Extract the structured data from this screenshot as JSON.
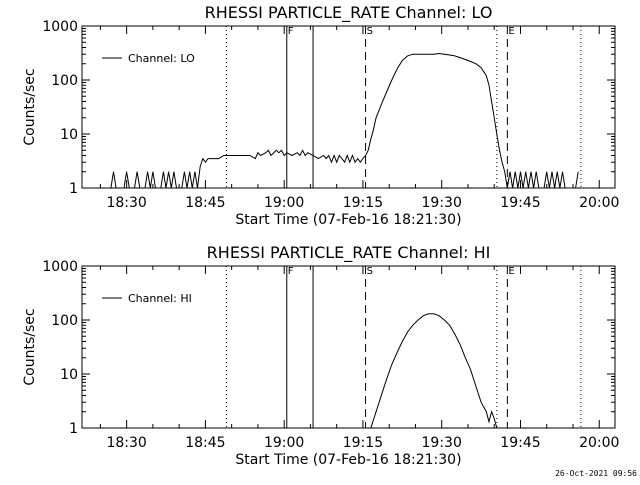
{
  "footer": {
    "timestamp": "26-Oct-2021 09:56"
  },
  "colors": {
    "line": "#000000",
    "background": "#ffffff"
  },
  "chart_data": [
    {
      "type": "line",
      "title": "RHESSI PARTICLE_RATE Channel: LO",
      "xlabel": "Start Time (07-Feb-16 18:21:30)",
      "ylabel": "Counts/sec",
      "x_unit": "minutes after 18:21:30",
      "xlim": [
        0,
        101.5
      ],
      "ylim": [
        1,
        1000
      ],
      "yscale": "log",
      "x_ticks": [
        {
          "v": 8.5,
          "label": "18:30"
        },
        {
          "v": 23.5,
          "label": "18:45"
        },
        {
          "v": 38.5,
          "label": "19:00"
        },
        {
          "v": 53.5,
          "label": "19:15"
        },
        {
          "v": 68.5,
          "label": "19:30"
        },
        {
          "v": 83.5,
          "label": "19:45"
        },
        {
          "v": 98.5,
          "label": "20:00"
        }
      ],
      "y_ticks": [
        {
          "v": 1,
          "label": "1"
        },
        {
          "v": 10,
          "label": "10"
        },
        {
          "v": 100,
          "label": "100"
        },
        {
          "v": 1000,
          "label": "1000"
        }
      ],
      "legend": {
        "position": "top-left",
        "entries": [
          "Channel: LO"
        ]
      },
      "markers": [
        {
          "x": 27.5,
          "style": "dotted",
          "label": ""
        },
        {
          "x": 39.0,
          "style": "solid",
          "label": "F"
        },
        {
          "x": 44.0,
          "style": "solid",
          "label": ""
        },
        {
          "x": 54.0,
          "style": "dashed",
          "label": "S"
        },
        {
          "x": 79.0,
          "style": "dotted",
          "label": ""
        },
        {
          "x": 81.0,
          "style": "dashed",
          "label": "E"
        },
        {
          "x": 95.0,
          "style": "dotted",
          "label": ""
        }
      ],
      "series": [
        {
          "name": "Channel: LO",
          "points": [
            [
              5.5,
              1
            ],
            [
              6,
              2
            ],
            [
              6.5,
              1
            ],
            [
              8,
              1
            ],
            [
              8.5,
              2
            ],
            [
              9,
              1
            ],
            [
              10,
              1
            ],
            [
              10.5,
              2
            ],
            [
              11,
              1
            ],
            [
              12,
              1
            ],
            [
              12.5,
              2
            ],
            [
              13,
              1
            ],
            [
              13.5,
              2
            ],
            [
              14,
              1
            ],
            [
              15,
              1
            ],
            [
              15.5,
              2
            ],
            [
              16,
              1
            ],
            [
              16.5,
              2
            ],
            [
              17,
              1
            ],
            [
              17.5,
              2
            ],
            [
              18,
              1
            ],
            [
              19,
              1
            ],
            [
              19.5,
              2
            ],
            [
              20,
              1
            ],
            [
              20.5,
              2
            ],
            [
              21,
              1
            ],
            [
              21.5,
              2
            ],
            [
              22,
              1
            ],
            [
              22.5,
              2.5
            ],
            [
              23,
              3.5
            ],
            [
              23.5,
              3
            ],
            [
              24,
              3.5
            ],
            [
              25,
              3.5
            ],
            [
              26,
              3.5
            ],
            [
              27,
              4
            ],
            [
              28,
              4
            ],
            [
              29,
              4
            ],
            [
              30,
              4
            ],
            [
              31,
              4
            ],
            [
              32,
              4
            ],
            [
              33,
              3.5
            ],
            [
              33.5,
              4.5
            ],
            [
              34,
              4
            ],
            [
              35,
              4.5
            ],
            [
              35.5,
              5
            ],
            [
              36,
              4
            ],
            [
              37,
              5
            ],
            [
              37.5,
              4.5
            ],
            [
              38,
              5
            ],
            [
              38.5,
              4
            ],
            [
              39,
              4.5
            ],
            [
              40,
              4
            ],
            [
              41,
              4.5
            ],
            [
              41.5,
              4
            ],
            [
              42,
              5
            ],
            [
              42.5,
              4
            ],
            [
              43,
              4.5
            ],
            [
              44,
              4
            ],
            [
              45,
              3.5
            ],
            [
              46,
              4
            ],
            [
              46.5,
              3.5
            ],
            [
              47,
              4
            ],
            [
              47.5,
              3
            ],
            [
              48,
              4
            ],
            [
              48.5,
              3
            ],
            [
              49,
              4
            ],
            [
              49.5,
              3.5
            ],
            [
              50,
              3
            ],
            [
              50.5,
              4
            ],
            [
              51,
              3
            ],
            [
              51.5,
              4
            ],
            [
              52,
              3
            ],
            [
              52.5,
              3.5
            ],
            [
              53,
              3
            ],
            [
              53.5,
              3.5
            ],
            [
              54,
              4
            ],
            [
              54.5,
              5
            ],
            [
              55,
              8
            ],
            [
              55.5,
              12
            ],
            [
              56,
              20
            ],
            [
              57,
              35
            ],
            [
              58,
              60
            ],
            [
              59,
              100
            ],
            [
              60,
              160
            ],
            [
              61,
              230
            ],
            [
              62,
              280
            ],
            [
              63,
              300
            ],
            [
              64,
              300
            ],
            [
              65,
              300
            ],
            [
              66,
              300
            ],
            [
              67,
              300
            ],
            [
              68,
              310
            ],
            [
              69,
              300
            ],
            [
              70,
              290
            ],
            [
              71,
              280
            ],
            [
              72,
              260
            ],
            [
              73,
              240
            ],
            [
              74,
              220
            ],
            [
              75,
              200
            ],
            [
              76,
              170
            ],
            [
              77,
              120
            ],
            [
              77.5,
              80
            ],
            [
              78,
              40
            ],
            [
              78.5,
              20
            ],
            [
              79,
              10
            ],
            [
              79.5,
              5
            ],
            [
              80,
              3
            ],
            [
              80.5,
              2
            ],
            [
              81,
              1
            ],
            [
              81.5,
              2
            ],
            [
              82,
              1
            ],
            [
              82.5,
              2
            ],
            [
              83,
              1
            ],
            [
              83.5,
              2
            ],
            [
              84,
              1
            ],
            [
              84.5,
              2
            ],
            [
              85,
              1
            ],
            [
              85.5,
              2
            ],
            [
              86,
              1
            ],
            [
              86.5,
              2
            ],
            [
              87,
              1
            ],
            [
              88,
              1
            ],
            [
              88.5,
              2
            ],
            [
              89,
              1
            ],
            [
              89.5,
              2
            ],
            [
              90,
              1
            ],
            [
              90.5,
              2
            ],
            [
              91,
              1
            ],
            [
              91.5,
              2
            ],
            [
              92,
              1
            ],
            [
              94,
              1
            ],
            [
              94.5,
              2
            ]
          ]
        }
      ]
    },
    {
      "type": "line",
      "title": "RHESSI PARTICLE_RATE Channel: HI",
      "xlabel": "Start Time (07-Feb-16 18:21:30)",
      "ylabel": "Counts/sec",
      "x_unit": "minutes after 18:21:30",
      "xlim": [
        0,
        101.5
      ],
      "ylim": [
        1,
        1000
      ],
      "yscale": "log",
      "x_ticks": [
        {
          "v": 8.5,
          "label": "18:30"
        },
        {
          "v": 23.5,
          "label": "18:45"
        },
        {
          "v": 38.5,
          "label": "19:00"
        },
        {
          "v": 53.5,
          "label": "19:15"
        },
        {
          "v": 68.5,
          "label": "19:30"
        },
        {
          "v": 83.5,
          "label": "19:45"
        },
        {
          "v": 98.5,
          "label": "20:00"
        }
      ],
      "y_ticks": [
        {
          "v": 1,
          "label": "1"
        },
        {
          "v": 10,
          "label": "10"
        },
        {
          "v": 100,
          "label": "100"
        },
        {
          "v": 1000,
          "label": "1000"
        }
      ],
      "legend": {
        "position": "top-left",
        "entries": [
          "Channel: HI"
        ]
      },
      "markers": [
        {
          "x": 27.5,
          "style": "dotted",
          "label": ""
        },
        {
          "x": 39.0,
          "style": "solid",
          "label": "F"
        },
        {
          "x": 44.0,
          "style": "solid",
          "label": ""
        },
        {
          "x": 54.0,
          "style": "dashed",
          "label": "S"
        },
        {
          "x": 79.0,
          "style": "dotted",
          "label": ""
        },
        {
          "x": 81.0,
          "style": "dashed",
          "label": "E"
        },
        {
          "x": 95.0,
          "style": "dotted",
          "label": ""
        }
      ],
      "series": [
        {
          "name": "Channel: HI",
          "points": [
            [
              55,
              1
            ],
            [
              56,
              2
            ],
            [
              57,
              4
            ],
            [
              58,
              8
            ],
            [
              59,
              15
            ],
            [
              60,
              25
            ],
            [
              61,
              40
            ],
            [
              62,
              60
            ],
            [
              63,
              80
            ],
            [
              64,
              100
            ],
            [
              65,
              120
            ],
            [
              66,
              130
            ],
            [
              67,
              130
            ],
            [
              68,
              120
            ],
            [
              69,
              100
            ],
            [
              70,
              80
            ],
            [
              71,
              55
            ],
            [
              72,
              35
            ],
            [
              73,
              20
            ],
            [
              74,
              12
            ],
            [
              75,
              6
            ],
            [
              76,
              3
            ],
            [
              77,
              2
            ],
            [
              77.5,
              1.3
            ],
            [
              78,
              2
            ],
            [
              78.5,
              1.5
            ],
            [
              79,
              1
            ]
          ]
        }
      ]
    }
  ]
}
